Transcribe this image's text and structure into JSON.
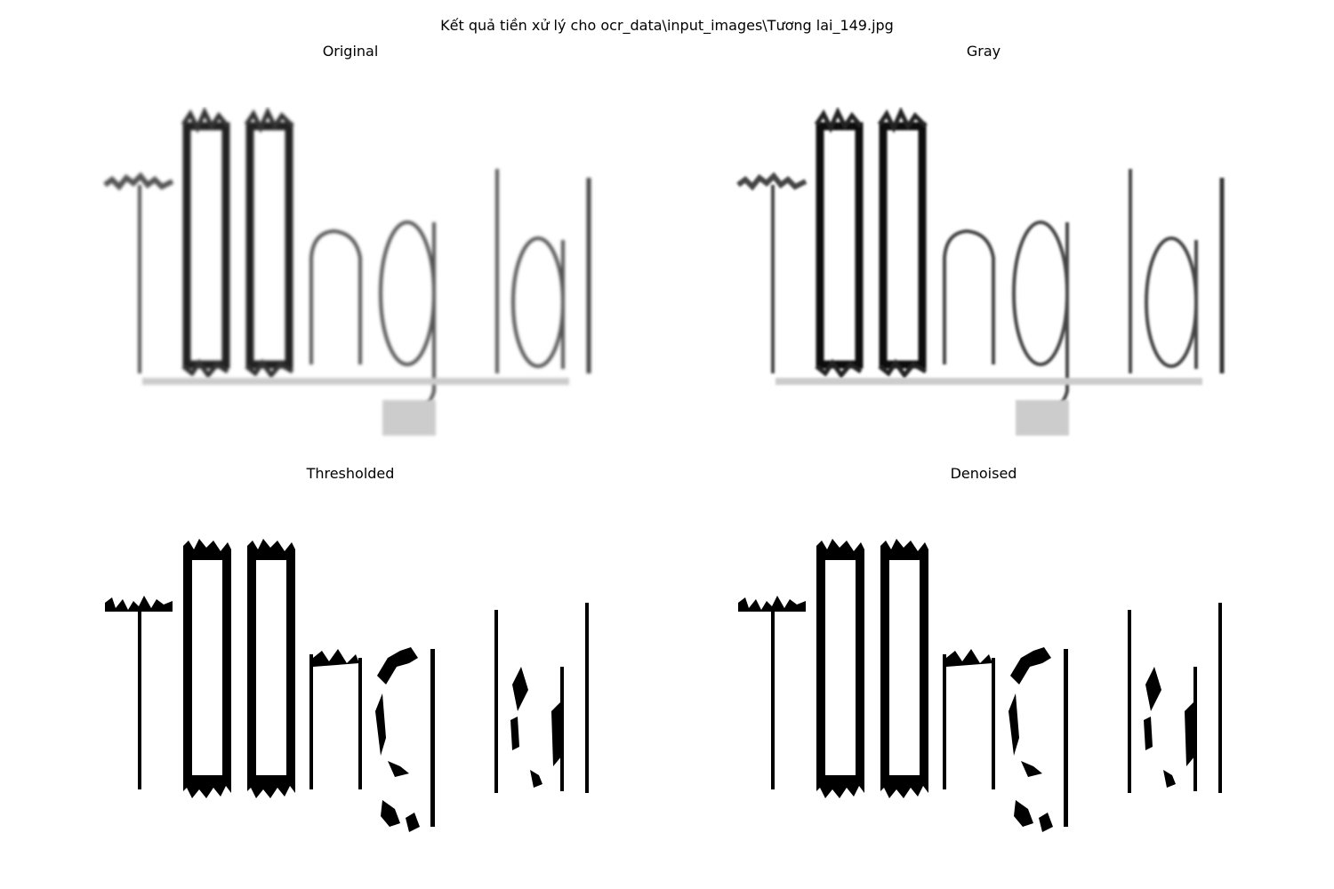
{
  "figure": {
    "suptitle": "Kết quả tiền xử lý cho ocr_data\\input_images\\Tương lai_149.jpg"
  },
  "panels": [
    {
      "title": "Original",
      "style": "soft",
      "image_text": "T□□ng lai"
    },
    {
      "title": "Gray",
      "style": "soft",
      "image_text": "T□□ng lai"
    },
    {
      "title": "Thresholded",
      "style": "binary",
      "image_text": "T□□ng lai"
    },
    {
      "title": "Denoised",
      "style": "binary",
      "image_text": "T□□ng lai"
    }
  ],
  "colors": {
    "background": "#ffffff",
    "ink": "#000000"
  }
}
